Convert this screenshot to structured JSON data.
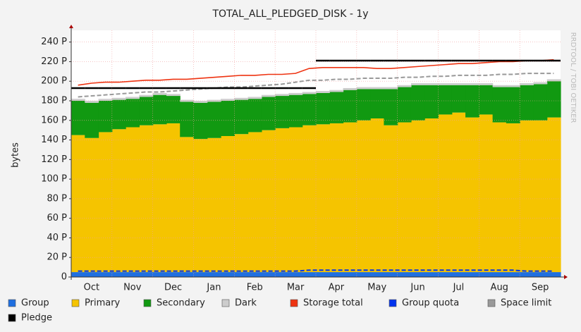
{
  "chart_data": {
    "type": "stacked_area",
    "title": "TOTAL_ALL_PLEDGED_DISK - 1y",
    "y_label": "bytes",
    "watermark": "RRDTOOL / TOBI OETIKER",
    "categories": [
      null,
      "Oct",
      null,
      null,
      "Nov",
      null,
      null,
      "Dec",
      null,
      null,
      "Jan",
      null,
      null,
      "Feb",
      null,
      null,
      "Mar",
      null,
      null,
      "Apr",
      null,
      null,
      "May",
      null,
      null,
      "Jun",
      null,
      null,
      "Jul",
      null,
      null,
      "Aug",
      null,
      null,
      "Sep",
      null
    ],
    "ylim": [
      0,
      252
    ],
    "yticks": [
      0,
      {
        "value": 20,
        "label": "20 P"
      },
      {
        "value": 40,
        "label": "40 P"
      },
      {
        "value": 60,
        "label": "60 P"
      },
      {
        "value": 80,
        "label": "80 P"
      },
      {
        "value": 100,
        "label": "100 P"
      },
      {
        "value": 120,
        "label": "120 P"
      },
      {
        "value": 140,
        "label": "140 P"
      },
      {
        "value": 160,
        "label": "160 P"
      },
      {
        "value": 180,
        "label": "180 P"
      },
      {
        "value": 200,
        "label": "200 P"
      },
      {
        "value": 220,
        "label": "220 P"
      },
      {
        "value": 240,
        "label": "240 P"
      }
    ],
    "grid": true,
    "series": [
      {
        "name": "Group",
        "color": "#1f6fe0",
        "kind": "stack",
        "values": [
          5,
          5,
          5,
          5,
          5,
          5,
          5,
          5,
          5,
          5,
          5,
          5,
          5,
          5,
          5,
          5,
          5,
          5,
          5,
          5,
          5,
          5,
          5,
          5,
          5,
          5,
          5,
          5,
          5,
          5,
          5,
          5,
          5,
          5,
          5,
          5
        ]
      },
      {
        "name": "Primary",
        "color": "#f5c400",
        "kind": "stack",
        "values": [
          140,
          137,
          143,
          146,
          148,
          150,
          151,
          152,
          138,
          136,
          137,
          139,
          141,
          143,
          145,
          147,
          148,
          150,
          151,
          152,
          153,
          155,
          157,
          150,
          153,
          155,
          157,
          161,
          163,
          158,
          161,
          153,
          152,
          155,
          155,
          158
        ]
      },
      {
        "name": "Secondary",
        "color": "#119911",
        "kind": "stack",
        "values": [
          35,
          36,
          32,
          30,
          29,
          29,
          30,
          28,
          36,
          37,
          37,
          36,
          35,
          34,
          34,
          33,
          33,
          32,
          32,
          32,
          33,
          32,
          30,
          37,
          36,
          36,
          34,
          30,
          28,
          33,
          30,
          36,
          37,
          36,
          37,
          37
        ]
      },
      {
        "name": "Dark",
        "color": "#cccccc",
        "kind": "stack",
        "values": [
          2,
          2,
          2,
          2,
          2,
          2,
          2,
          2,
          2,
          2,
          2,
          2,
          2,
          2,
          2,
          2,
          2,
          2,
          2,
          2,
          2,
          2,
          2,
          2,
          2,
          2,
          2,
          2,
          2,
          2,
          2,
          2,
          2,
          2,
          2,
          2
        ]
      },
      {
        "name": "Storage total",
        "color": "#ee3311",
        "kind": "line",
        "values": [
          196,
          198,
          199,
          199,
          200,
          201,
          201,
          202,
          202,
          203,
          204,
          205,
          206,
          206,
          207,
          207,
          208,
          213,
          214,
          214,
          214,
          214,
          213,
          213,
          214,
          215,
          216,
          217,
          218,
          218,
          219,
          220,
          220,
          221,
          221,
          222
        ]
      },
      {
        "name": "Group quota",
        "color": "#0033ee",
        "kind": "dash",
        "values": [
          6,
          6,
          6,
          6,
          6,
          6,
          6,
          6,
          6,
          6,
          6,
          6,
          6,
          6,
          6,
          6,
          6,
          7,
          7,
          7,
          7,
          7,
          7,
          7,
          7,
          7,
          7,
          7,
          7,
          7,
          7,
          7,
          7,
          6,
          6,
          6
        ]
      },
      {
        "name": "Space limit",
        "color": "#999999",
        "kind": "dash",
        "values": [
          184,
          185,
          186,
          187,
          188,
          189,
          189,
          190,
          191,
          192,
          193,
          194,
          194,
          195,
          196,
          197,
          199,
          201,
          201,
          202,
          202,
          203,
          203,
          203,
          204,
          204,
          205,
          205,
          206,
          206,
          206,
          207,
          207,
          208,
          208,
          208
        ]
      },
      {
        "name": "Pledge",
        "color": "#000000",
        "kind": "step",
        "values": [
          193,
          193,
          193,
          193,
          193,
          193,
          193,
          193,
          193,
          193,
          193,
          193,
          193,
          193,
          193,
          193,
          193,
          193,
          221,
          221,
          221,
          221,
          221,
          221,
          221,
          221,
          221,
          221,
          221,
          221,
          221,
          221,
          221,
          221,
          221,
          221
        ]
      }
    ]
  }
}
